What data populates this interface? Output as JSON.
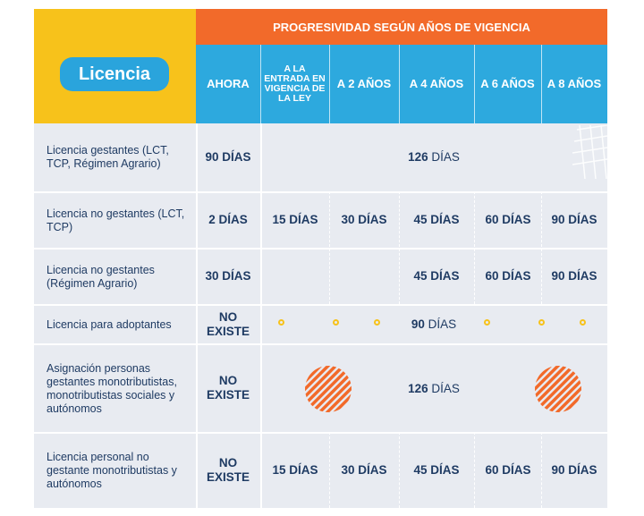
{
  "header": {
    "badge": "Licencia",
    "group_title": "PROGRESIVIDAD SEGÚN AÑOS DE VIGENCIA",
    "columns": [
      "AHORA",
      "A LA ENTRADA EN VIGENCIA DE LA LEY",
      "A 2 AÑOS",
      "A 4 AÑOS",
      "A 6 AÑOS",
      "A 8 AÑOS"
    ]
  },
  "rows": [
    {
      "label": "Licencia gestantes (LCT, TCP, Régimen Agrario)",
      "ahora": "90 DÍAS",
      "span_num": "126",
      "span_unit": "DÍAS"
    },
    {
      "label": "Licencia no gestantes (LCT, TCP)",
      "ahora": "2 DÍAS",
      "values": [
        "15 DÍAS",
        "30 DÍAS",
        "45 DÍAS",
        "60 DÍAS",
        "90 DÍAS"
      ]
    },
    {
      "label": "Licencia no gestantes (Régimen Agrario)",
      "ahora": "30 DÍAS",
      "values": [
        "",
        "",
        "45 DÍAS",
        "60 DÍAS",
        "90 DÍAS"
      ]
    },
    {
      "label": "Licencia para adoptantes",
      "ahora": "NO EXISTE",
      "span_num": "90",
      "span_unit": "DÍAS"
    },
    {
      "label": "Asignación personas gestantes monotributistas, monotributistas sociales y autónomos",
      "ahora": "NO EXISTE",
      "span_num": "126",
      "span_unit": "DÍAS"
    },
    {
      "label": "Licencia personal no gestante monotributistas y autónomos",
      "ahora": "NO EXISTE",
      "values": [
        "15 DÍAS",
        "30 DÍAS",
        "45 DÍAS",
        "60 DÍAS",
        "90 DÍAS"
      ]
    }
  ],
  "colors": {
    "yellow": "#f7c21b",
    "orange": "#f26a2a",
    "blue": "#2da9de",
    "row": "#e8ebf1",
    "text": "#1f3b63"
  }
}
